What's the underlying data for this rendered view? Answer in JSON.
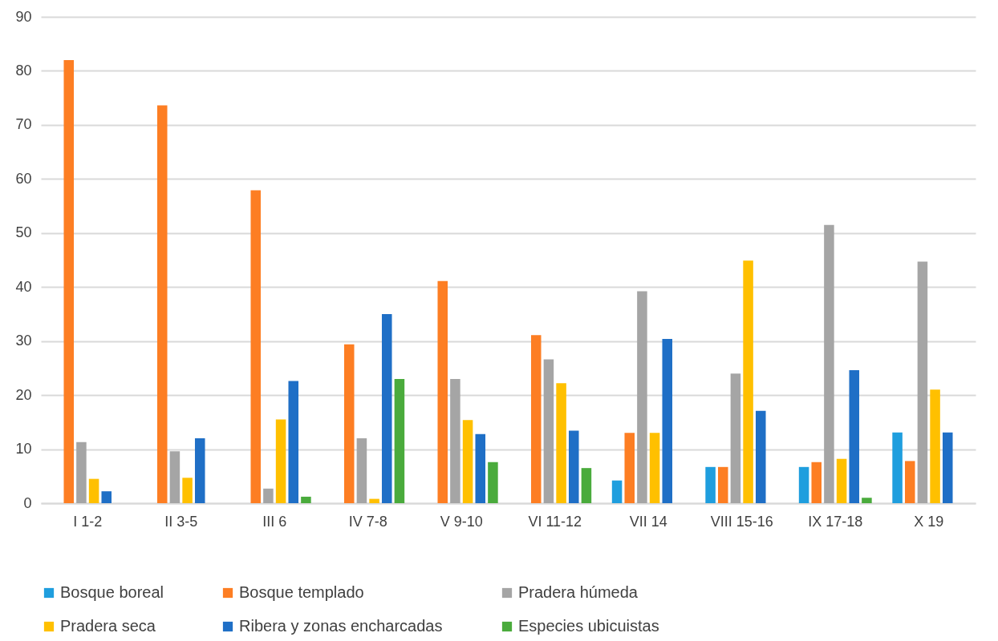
{
  "chart_data": {
    "type": "bar",
    "categories": [
      "I 1-2",
      "II 3-5",
      "III 6",
      "IV 7-8",
      "V 9-10",
      "VI 11-12",
      "VII 14",
      "VIII 15-16",
      "IX 17-18",
      "X 19"
    ],
    "series": [
      {
        "name": "Bosque boreal",
        "color": "#1f9ede",
        "values": [
          null,
          null,
          null,
          null,
          null,
          null,
          4.2,
          6.7,
          6.7,
          13.1
        ]
      },
      {
        "name": "Bosque templado",
        "color": "#fd7e23",
        "values": [
          82,
          73.6,
          57.9,
          29.4,
          41.1,
          31.1,
          13,
          6.7,
          7.6,
          7.8
        ]
      },
      {
        "name": "Pradera húmeda",
        "color": "#a5a5a5",
        "values": [
          11.3,
          9.6,
          2.7,
          12,
          23,
          26.6,
          39.2,
          24,
          51.5,
          44.7
        ]
      },
      {
        "name": "Pradera seca",
        "color": "#ffc000",
        "values": [
          4.5,
          4.7,
          15.5,
          0.8,
          15.4,
          22.2,
          13,
          44.9,
          8.2,
          21
        ]
      },
      {
        "name": "Ribera y zonas encharcadas",
        "color": "#1f6fc6",
        "values": [
          2.2,
          12,
          22.6,
          35,
          12.8,
          13.4,
          30.4,
          17.1,
          24.6,
          13.1
        ]
      },
      {
        "name": "Especies ubicuistas",
        "color": "#4aab3c",
        "values": [
          null,
          null,
          1.2,
          23,
          7.6,
          6.5,
          null,
          null,
          1,
          null
        ]
      }
    ],
    "ylim": [
      0,
      90
    ],
    "yticks": [
      0,
      10,
      20,
      30,
      40,
      50,
      60,
      70,
      80,
      90
    ],
    "grid": "y",
    "legend": "bottom"
  }
}
